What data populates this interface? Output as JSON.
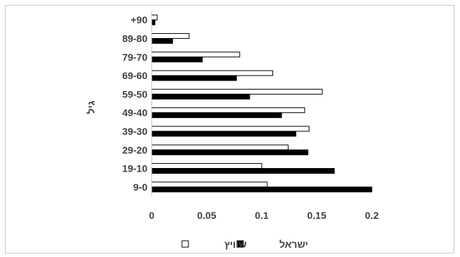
{
  "chart_data": {
    "type": "bar",
    "orientation": "horizontal",
    "categories": [
      "+90",
      "89-80",
      "79-70",
      "69-60",
      "59-50",
      "49-40",
      "39-30",
      "29-20",
      "19-10",
      "9-0"
    ],
    "series": [
      {
        "name": "שוויץ",
        "color": "#ffffff",
        "stroke": "#000000",
        "values": [
          0.005,
          0.034,
          0.08,
          0.11,
          0.155,
          0.139,
          0.143,
          0.124,
          0.1,
          0.105
        ]
      },
      {
        "name": "ישראל",
        "color": "#000000",
        "stroke": "#000000",
        "values": [
          0.003,
          0.019,
          0.046,
          0.077,
          0.089,
          0.118,
          0.131,
          0.142,
          0.166,
          0.2
        ]
      }
    ],
    "xlabel": "",
    "ylabel": "גיל",
    "xlim": [
      0,
      0.2
    ],
    "x_ticks": [
      "0",
      "0.05",
      "0.1",
      "0.15",
      "0.2"
    ],
    "grid": false,
    "legend_position": "bottom"
  }
}
